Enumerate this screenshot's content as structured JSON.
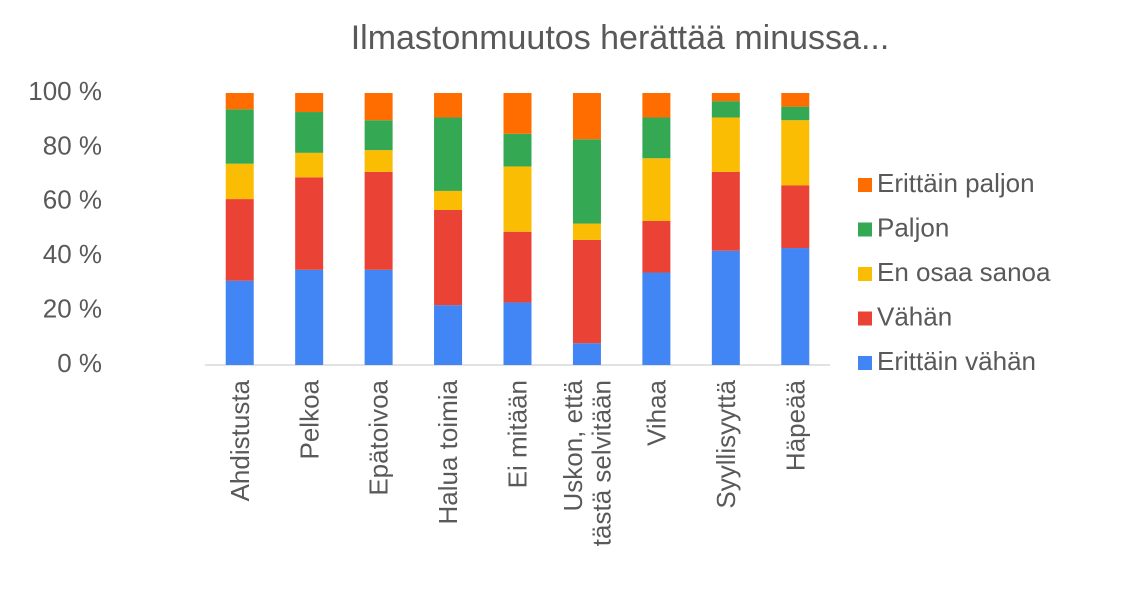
{
  "chart_data": {
    "type": "stacked_bar",
    "title": "Ilmastonmuutos herättää minussa...",
    "categories": [
      "Ahdistusta",
      "Pelkoa",
      "Epätoivoa",
      "Halua toimia",
      "Ei mitään",
      "Uskon, että\ntästä selvitään",
      "Vihaa",
      "Syyllisyyttä",
      "Häpeää"
    ],
    "series": [
      {
        "name": "Erittäin vähän",
        "color": "#4285f4",
        "values": [
          31,
          35,
          35,
          22,
          23,
          8,
          34,
          42,
          43
        ]
      },
      {
        "name": "Vähän",
        "color": "#ea4335",
        "values": [
          30,
          34,
          36,
          35,
          26,
          38,
          19,
          29,
          23
        ]
      },
      {
        "name": "En osaa sanoa",
        "color": "#fbbc04",
        "values": [
          13,
          9,
          8,
          7,
          24,
          6,
          23,
          20,
          24
        ]
      },
      {
        "name": "Paljon",
        "color": "#34a853",
        "values": [
          20,
          15,
          11,
          27,
          12,
          31,
          15,
          6,
          5
        ]
      },
      {
        "name": "Erittäin paljon",
        "color": "#ff6d01",
        "values": [
          6,
          7,
          10,
          9,
          15,
          17,
          9,
          3,
          5
        ]
      }
    ],
    "ylim": [
      0,
      100
    ],
    "yticks": [
      {
        "value": 0,
        "label": "0 %"
      },
      {
        "value": 20,
        "label": "20 %"
      },
      {
        "value": 40,
        "label": "40 %"
      },
      {
        "value": 60,
        "label": "60 %"
      },
      {
        "value": 80,
        "label": "80 %"
      },
      {
        "value": 100,
        "label": "100 %"
      }
    ],
    "legend": "right"
  }
}
